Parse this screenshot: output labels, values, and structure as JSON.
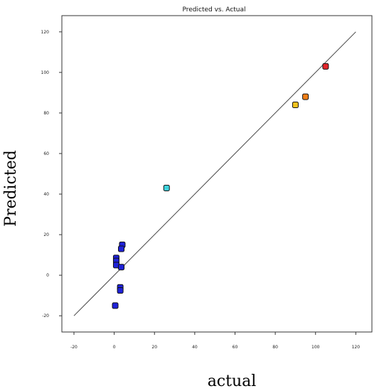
{
  "chart_data": {
    "type": "scatter",
    "title": "Predicted vs. Actual",
    "xlabel": "actual",
    "ylabel": "Predicted",
    "xlim": [
      -26,
      128
    ],
    "ylim": [
      -28,
      128
    ],
    "xticks": [
      -20,
      0,
      20,
      40,
      60,
      80,
      100,
      120
    ],
    "yticks": [
      -20,
      0,
      20,
      40,
      60,
      80,
      100,
      120
    ],
    "reference_line": {
      "from": [
        -20,
        -20
      ],
      "to": [
        120,
        120
      ]
    },
    "grid": false,
    "legend": "none",
    "points": [
      {
        "x": 105,
        "y": 103,
        "color": "#e3262b"
      },
      {
        "x": 95,
        "y": 88,
        "color": "#f07f16"
      },
      {
        "x": 90,
        "y": 84,
        "color": "#f2c21f"
      },
      {
        "x": 26,
        "y": 43,
        "color": "#3fd2dc"
      },
      {
        "x": 4,
        "y": 15,
        "color": "#1f22d9"
      },
      {
        "x": 3.5,
        "y": 13,
        "color": "#1f22d9"
      },
      {
        "x": 1,
        "y": 8.5,
        "color": "#1f22d9"
      },
      {
        "x": 1,
        "y": 7,
        "color": "#1f22d9"
      },
      {
        "x": 1,
        "y": 5,
        "color": "#1f22d9"
      },
      {
        "x": 3.5,
        "y": 4,
        "color": "#1f22d9"
      },
      {
        "x": 3,
        "y": -6,
        "color": "#1f22d9"
      },
      {
        "x": 3,
        "y": -7.5,
        "color": "#1f22d9"
      },
      {
        "x": 0.5,
        "y": -15,
        "color": "#1f22d9"
      }
    ]
  }
}
